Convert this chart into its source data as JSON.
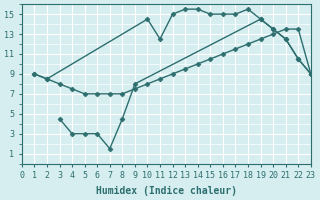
{
  "bg_color": "#d6eef0",
  "grid_color": "#ffffff",
  "line_color": "#2d6e6e",
  "line_width": 1.0,
  "markersize": 2.5,
  "line1_x": [
    1,
    2,
    10,
    11,
    12,
    13,
    14,
    15,
    16,
    17,
    18,
    19,
    20,
    21,
    22,
    23
  ],
  "line1_y": [
    9,
    8.5,
    14.5,
    12.5,
    15,
    15.5,
    15.5,
    15,
    15,
    15,
    15.5,
    14.5,
    13.5,
    12.5,
    10.5,
    9
  ],
  "line2_x": [
    1,
    2,
    3,
    4,
    5,
    6,
    7,
    8,
    9,
    10,
    11,
    12,
    13,
    14,
    15,
    16,
    17,
    18,
    19,
    20,
    21,
    22,
    23
  ],
  "line2_y": [
    9,
    8.5,
    8.0,
    7.5,
    7.0,
    7.0,
    7.0,
    7.0,
    7.5,
    8.0,
    8.5,
    9.0,
    9.5,
    10.0,
    10.5,
    11.0,
    11.5,
    12.0,
    12.5,
    13.0,
    13.5,
    13.5,
    9
  ],
  "line3_x": [
    3,
    4,
    5,
    6,
    7,
    8,
    9,
    19,
    20,
    21,
    22,
    23
  ],
  "line3_y": [
    4.5,
    3.0,
    3.0,
    3.0,
    1.5,
    4.5,
    8.0,
    14.5,
    13.5,
    12.5,
    10.5,
    9
  ],
  "xlabel": "Humidex (Indice chaleur)",
  "xlim": [
    0,
    23
  ],
  "ylim": [
    0,
    16
  ],
  "xticks": [
    0,
    1,
    2,
    3,
    4,
    5,
    6,
    7,
    8,
    9,
    10,
    11,
    12,
    13,
    14,
    15,
    16,
    17,
    18,
    19,
    20,
    21,
    22,
    23
  ],
  "yticks": [
    1,
    3,
    5,
    7,
    9,
    11,
    13,
    15
  ],
  "xlabel_fontsize": 7,
  "tick_fontsize": 6
}
